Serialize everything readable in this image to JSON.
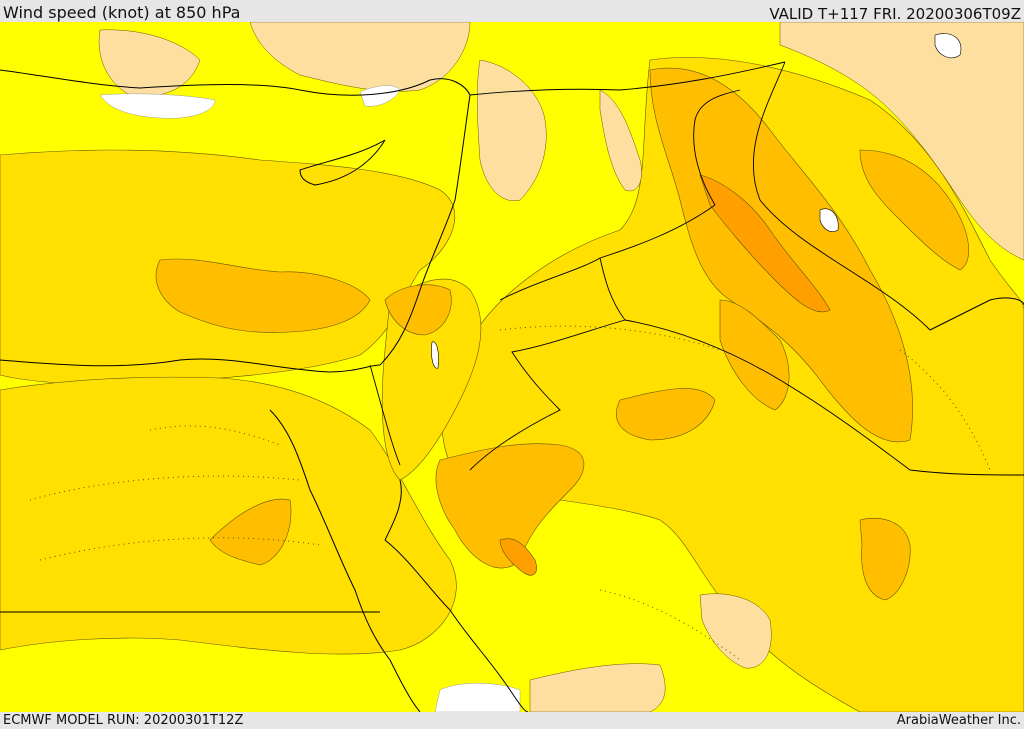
{
  "header": {
    "title": "Wind speed (knot) at 850 hPa",
    "valid": "VALID T+117 FRI. 20200306T09Z"
  },
  "footer": {
    "model_run": "ECMWF MODEL RUN: 20200301T12Z",
    "credit": "ArabiaWeather Inc."
  },
  "palette": {
    "background_low": "#ffff00",
    "band_1": "#ffe000",
    "band_2": "#ffbf00",
    "band_3": "#ff9f00",
    "calm": "#fde0a0",
    "no_data": "#ffffff",
    "frame": "#e6e6e6",
    "contour_line": "#555500",
    "border_line": "#000000"
  }
}
